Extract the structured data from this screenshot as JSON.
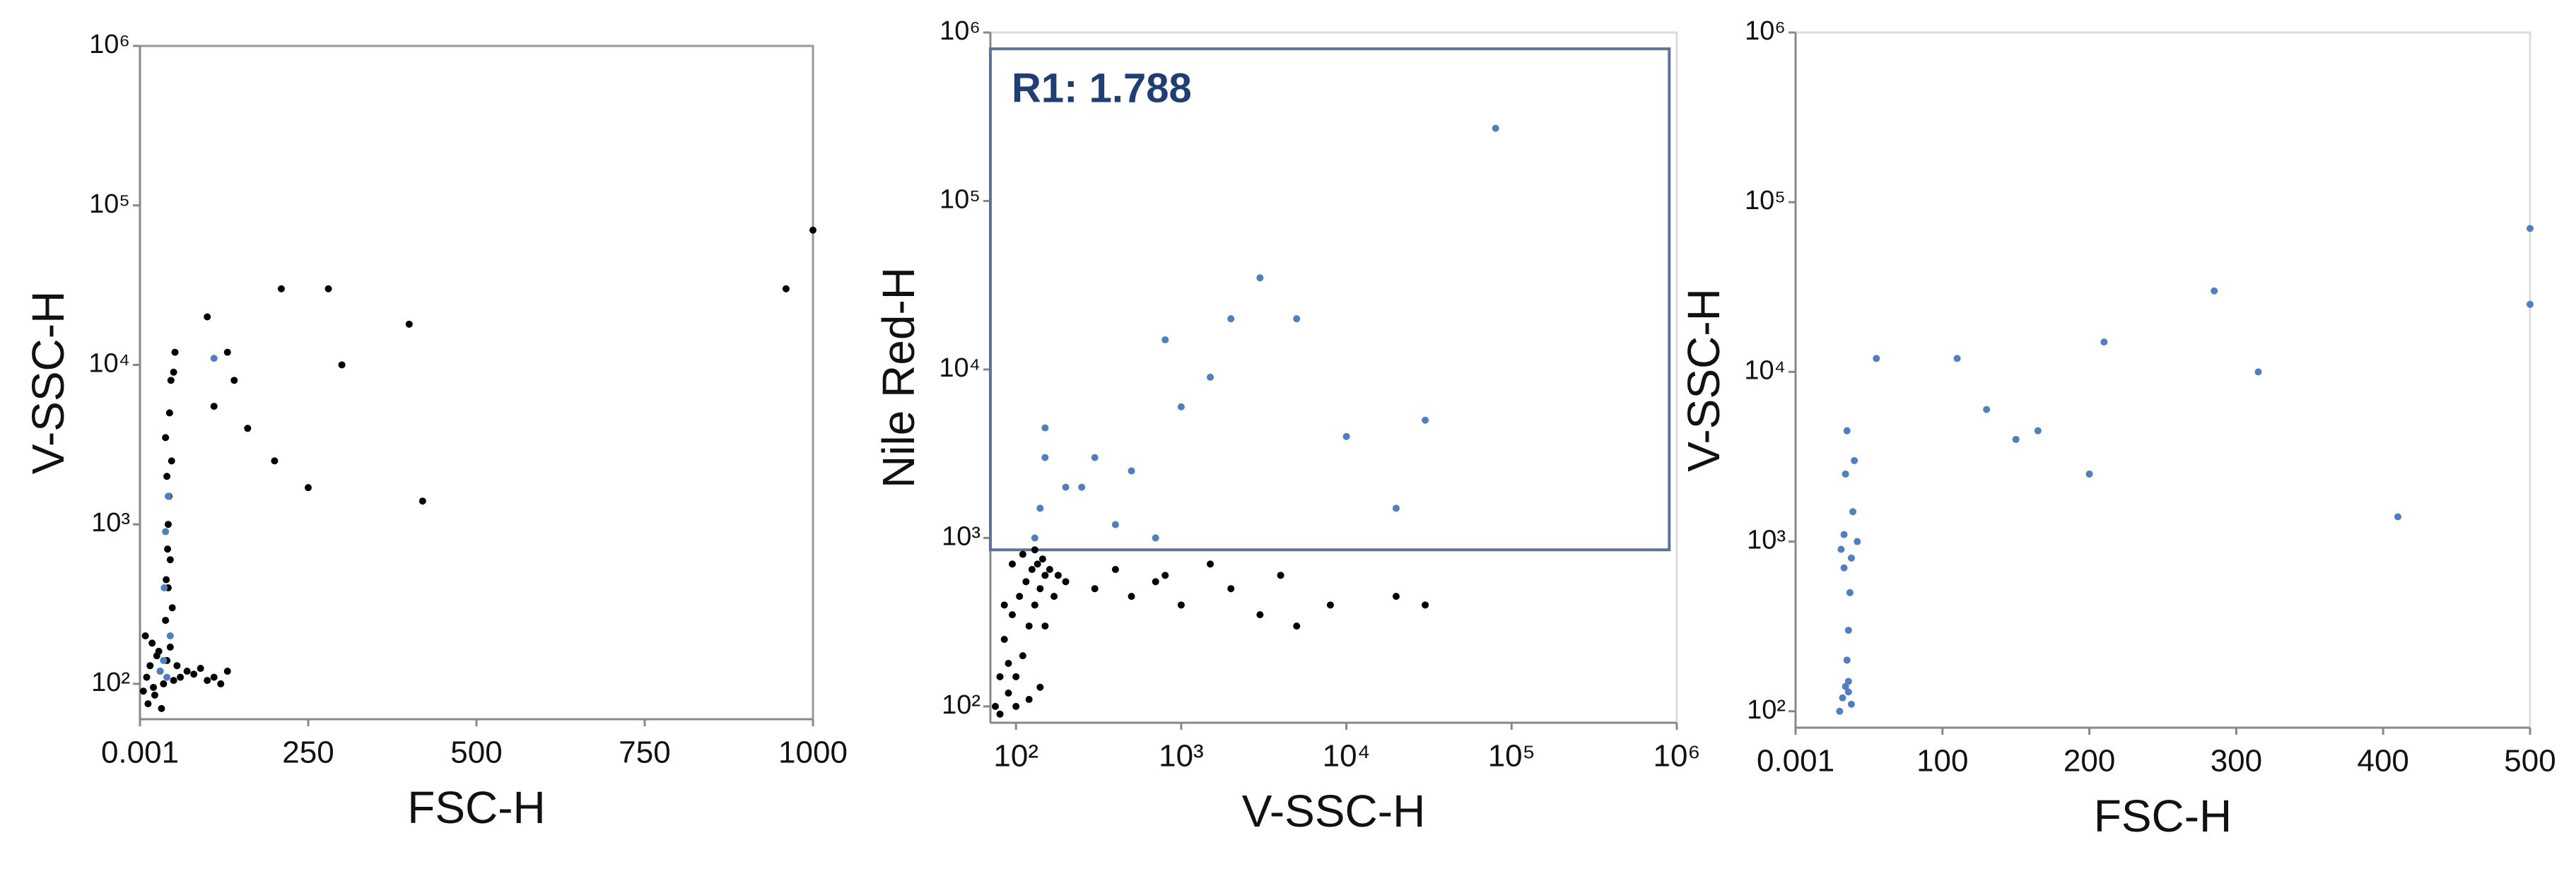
{
  "chart_data": [
    {
      "type": "scatter",
      "xlabel": "FSC-H",
      "ylabel": "V-SSC-H",
      "xscale": "linear",
      "yscale": "log",
      "xlim": [
        0.001,
        1000
      ],
      "xticks": [
        0.001,
        250,
        500,
        750,
        1000
      ],
      "ylim": [
        60,
        1000000
      ],
      "yticks": [
        {
          "value": 100,
          "label": "10²"
        },
        {
          "value": 1000,
          "label": "10³"
        },
        {
          "value": 10000,
          "label": "10⁴"
        },
        {
          "value": 100000,
          "label": "10⁵"
        },
        {
          "value": 1000000,
          "label": "10⁶"
        }
      ],
      "series": [
        {
          "color": "#000000",
          "x": [
            5,
            10,
            15,
            20,
            25,
            30,
            35,
            40,
            45,
            50,
            8,
            18,
            28,
            38,
            48,
            12,
            22,
            32,
            42,
            55,
            60,
            70,
            80,
            90,
            100,
            110,
            120,
            130,
            45,
            42,
            40,
            38,
            44,
            46,
            43,
            41,
            39,
            47,
            50,
            52,
            100,
            130,
            160,
            210,
            280,
            300,
            400,
            420,
            250,
            200,
            960,
            1000,
            140,
            110
          ],
          "values": [
            90,
            110,
            130,
            95,
            150,
            120,
            100,
            140,
            170,
            105,
            200,
            180,
            160,
            250,
            300,
            75,
            85,
            70,
            400,
            130,
            110,
            120,
            115,
            125,
            105,
            110,
            100,
            120,
            600,
            1000,
            2000,
            3500,
            5000,
            8000,
            1500,
            700,
            450,
            2500,
            9000,
            12000,
            20000,
            12000,
            4000,
            30000,
            30000,
            10000,
            18000,
            1400,
            1700,
            2500,
            30000,
            70000,
            8000,
            5500
          ]
        },
        {
          "color": "#4f7fbf",
          "x": [
            30,
            35,
            40,
            38,
            42,
            36,
            45,
            110
          ],
          "values": [
            120,
            140,
            110,
            900,
            1500,
            400,
            200,
            11000
          ]
        }
      ]
    },
    {
      "type": "scatter",
      "xlabel": "V-SSC-H",
      "ylabel": "Nile Red-H",
      "xscale": "log",
      "yscale": "log",
      "xlim": [
        70,
        1000000
      ],
      "xticks": [
        {
          "value": 100,
          "label": "10²"
        },
        {
          "value": 1000,
          "label": "10³"
        },
        {
          "value": 10000,
          "label": "10⁴"
        },
        {
          "value": 100000,
          "label": "10⁵"
        },
        {
          "value": 1000000,
          "label": "10⁶"
        }
      ],
      "ylim": [
        80,
        1000000
      ],
      "yticks": [
        {
          "value": 100,
          "label": "10²"
        },
        {
          "value": 1000,
          "label": "10³"
        },
        {
          "value": 10000,
          "label": "10⁴"
        },
        {
          "value": 100000,
          "label": "10⁵"
        },
        {
          "value": 1000000,
          "label": "10⁶"
        }
      ],
      "gate": {
        "label": "R1: 1.788",
        "x": [
          70,
          900000
        ],
        "y": [
          850,
          800000
        ],
        "color": "#5a7396"
      },
      "series": [
        {
          "color": "#000000",
          "x": [
            80,
            90,
            100,
            110,
            120,
            130,
            140,
            150,
            85,
            95,
            105,
            115,
            125,
            135,
            145,
            160,
            180,
            200,
            100,
            120,
            140,
            90,
            110,
            130,
            150,
            170,
            75,
            80,
            85,
            95,
            300,
            500,
            800,
            1000,
            2000,
            3000,
            5000,
            8000,
            20000,
            30000,
            400,
            1500,
            4000,
            700
          ],
          "values": [
            90,
            120,
            150,
            200,
            300,
            400,
            500,
            600,
            250,
            350,
            450,
            550,
            650,
            700,
            750,
            650,
            600,
            550,
            100,
            110,
            130,
            180,
            800,
            850,
            300,
            450,
            100,
            150,
            400,
            700,
            500,
            450,
            600,
            400,
            500,
            350,
            300,
            400,
            450,
            400,
            650,
            700,
            600,
            550
          ]
        },
        {
          "color": "#4f7fbf",
          "x": [
            130,
            140,
            150,
            200,
            300,
            500,
            800,
            1000,
            2000,
            3000,
            5000,
            10000,
            30000,
            80000,
            400,
            700,
            1500,
            20000,
            150,
            250
          ],
          "values": [
            1000,
            1500,
            3000,
            2000,
            3000,
            2500,
            15000,
            6000,
            20000,
            35000,
            20000,
            4000,
            5000,
            270000,
            1200,
            1000,
            9000,
            1500,
            4500,
            2000
          ]
        }
      ]
    },
    {
      "type": "scatter",
      "xlabel": "FSC-H",
      "ylabel": "V-SSC-H",
      "xscale": "linear",
      "yscale": "log",
      "xlim": [
        0.001,
        500
      ],
      "xticks": [
        0.001,
        100,
        200,
        300,
        400,
        500
      ],
      "ylim": [
        80,
        1000000
      ],
      "yticks": [
        {
          "value": 100,
          "label": "10²"
        },
        {
          "value": 1000,
          "label": "10³"
        },
        {
          "value": 10000,
          "label": "10⁴"
        },
        {
          "value": 100000,
          "label": "10⁵"
        },
        {
          "value": 1000000,
          "label": "10⁶"
        }
      ],
      "series": [
        {
          "color": "#4f7fbf",
          "x": [
            30,
            32,
            34,
            35,
            36,
            37,
            38,
            33,
            31,
            39,
            40,
            35,
            34,
            36,
            42,
            55,
            110,
            130,
            150,
            165,
            200,
            210,
            285,
            315,
            410,
            500,
            500,
            38,
            36,
            33
          ],
          "values": [
            100,
            120,
            140,
            200,
            300,
            500,
            800,
            1100,
            900,
            1500,
            3000,
            4500,
            2500,
            150,
            1000,
            12000,
            12000,
            6000,
            4000,
            4500,
            2500,
            15000,
            30000,
            10000,
            1400,
            70000,
            25000,
            110,
            130,
            700
          ]
        }
      ]
    }
  ]
}
